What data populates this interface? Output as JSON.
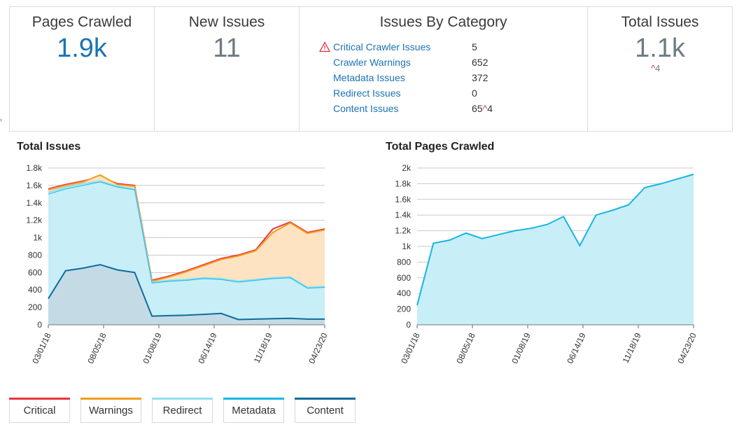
{
  "cards": {
    "pages_crawled": {
      "title": "Pages Crawled",
      "value": "1.9k"
    },
    "new_issues": {
      "title": "New Issues",
      "value": "11"
    },
    "issues_by_category": {
      "title": "Issues By Category",
      "rows": [
        {
          "label": "Critical Crawler Issues",
          "value": "5",
          "warning": true
        },
        {
          "label": "Crawler Warnings",
          "value": "652"
        },
        {
          "label": "Metadata Issues",
          "value": "372"
        },
        {
          "label": "Redirect Issues",
          "value": "0"
        },
        {
          "label": "Content Issues",
          "value": "65",
          "delta": "4"
        }
      ]
    },
    "total_issues": {
      "title": "Total Issues",
      "value": "1.1k",
      "delta": "4"
    }
  },
  "colors": {
    "critical": "#e8343f",
    "warnings": "#f39c1e",
    "redirect": "#8fe0f0",
    "metadata": "#16b6e0",
    "content": "#0e6c9c",
    "blue": "#1a73b5",
    "gray": "#6d7b83"
  },
  "chart_data": [
    {
      "type": "area",
      "title": "Total Issues",
      "ylim": [
        0,
        1800
      ],
      "yticks": [
        "0",
        "200",
        "400",
        "600",
        "800",
        "1k",
        "1.2k",
        "1.4k",
        "1.6k",
        "1.8k"
      ],
      "xticks": [
        "03/01/18",
        "08/05/18",
        "01/08/19",
        "06/14/19",
        "11/18/19",
        "04/23/20"
      ],
      "series": [
        {
          "name": "Critical",
          "values": [
            1560,
            1610,
            1650,
            1700,
            1620,
            1600,
            510,
            560,
            620,
            690,
            760,
            800,
            860,
            1100,
            1180,
            1060,
            1100
          ]
        },
        {
          "name": "Warnings",
          "values": [
            1550,
            1600,
            1640,
            1720,
            1610,
            1590,
            500,
            550,
            610,
            680,
            750,
            790,
            850,
            1060,
            1170,
            1050,
            1090
          ]
        },
        {
          "name": "Redirect",
          "values": [
            1520,
            1580,
            1620,
            1650,
            1590,
            1560,
            490,
            510,
            520,
            540,
            530,
            500,
            520,
            540,
            550,
            430,
            440
          ]
        },
        {
          "name": "Metadata",
          "values": [
            1500,
            1560,
            1600,
            1640,
            1580,
            1550,
            480,
            500,
            510,
            530,
            520,
            490,
            510,
            530,
            540,
            420,
            430
          ]
        },
        {
          "name": "Content",
          "values": [
            300,
            620,
            650,
            690,
            630,
            600,
            100,
            105,
            110,
            120,
            130,
            60,
            65,
            70,
            75,
            65,
            65
          ]
        }
      ]
    },
    {
      "type": "area",
      "title": "Total Pages Crawled",
      "ylim": [
        0,
        2000
      ],
      "yticks": [
        "0",
        "200",
        "400",
        "600",
        "800",
        "1k",
        "1.2k",
        "1.4k",
        "1.6k",
        "1.8k",
        "2k"
      ],
      "xticks": [
        "03/01/18",
        "08/05/18",
        "01/08/19",
        "06/14/19",
        "11/18/19",
        "04/23/20"
      ],
      "series": [
        {
          "name": "Pages Crawled",
          "values": [
            250,
            1040,
            1080,
            1170,
            1100,
            1150,
            1200,
            1230,
            1280,
            1380,
            1010,
            1400,
            1460,
            1530,
            1750,
            1800,
            1860,
            1920
          ]
        }
      ]
    }
  ],
  "legend": [
    "Critical",
    "Warnings",
    "Redirect",
    "Metadata",
    "Content"
  ]
}
